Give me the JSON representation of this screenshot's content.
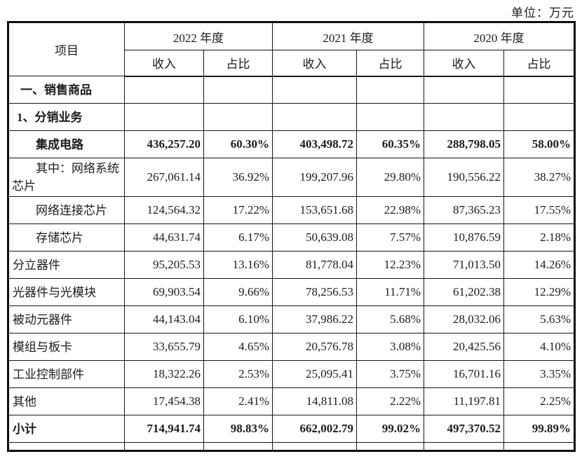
{
  "unit_label": "单位：万元",
  "table": {
    "item_header": "项目",
    "year_groups": [
      {
        "label": "2022 年度"
      },
      {
        "label": "2021 年度"
      },
      {
        "label": "2020 年度"
      }
    ],
    "sub_headers": {
      "revenue": "收入",
      "proportion": "占比"
    },
    "rows": [
      {
        "item": "一、销售商品",
        "bold": true,
        "indent": "section",
        "values": [
          "",
          "",
          "",
          "",
          "",
          ""
        ]
      },
      {
        "item": "1、分销业务",
        "bold": true,
        "indent": "sub",
        "values": [
          "",
          "",
          "",
          "",
          "",
          ""
        ]
      },
      {
        "item": "集成电路",
        "bold": true,
        "indent": "detail",
        "values": [
          "436,257.20",
          "60.30%",
          "403,498.72",
          "60.35%",
          "288,798.05",
          "58.00%"
        ]
      },
      {
        "item": "其中：网络系统芯片",
        "bold": false,
        "indent": "detail",
        "values": [
          "267,061.14",
          "36.92%",
          "199,207.96",
          "29.80%",
          "190,556.22",
          "38.27%"
        ]
      },
      {
        "item": "网络连接芯片",
        "bold": false,
        "indent": "detail",
        "values": [
          "124,564.32",
          "17.22%",
          "153,651.68",
          "22.98%",
          "87,365.23",
          "17.55%"
        ]
      },
      {
        "item": "存储芯片",
        "bold": false,
        "indent": "detail",
        "values": [
          "44,631.74",
          "6.17%",
          "50,639.08",
          "7.57%",
          "10,876.59",
          "2.18%"
        ]
      },
      {
        "item": "分立器件",
        "bold": false,
        "indent": "plain",
        "values": [
          "95,205.53",
          "13.16%",
          "81,778.04",
          "12.23%",
          "71,013.50",
          "14.26%"
        ]
      },
      {
        "item": "光器件与光模块",
        "bold": false,
        "indent": "plain",
        "values": [
          "69,903.54",
          "9.66%",
          "78,256.53",
          "11.71%",
          "61,202.38",
          "12.29%"
        ]
      },
      {
        "item": "被动元器件",
        "bold": false,
        "indent": "plain",
        "values": [
          "44,143.04",
          "6.10%",
          "37,986.22",
          "5.68%",
          "28,032.06",
          "5.63%"
        ]
      },
      {
        "item": "模组与板卡",
        "bold": false,
        "indent": "plain",
        "values": [
          "33,655.79",
          "4.65%",
          "20,576.78",
          "3.08%",
          "20,425.56",
          "4.10%"
        ]
      },
      {
        "item": "工业控制部件",
        "bold": false,
        "indent": "plain",
        "values": [
          "18,322.26",
          "2.53%",
          "25,095.41",
          "3.75%",
          "16,701.16",
          "3.35%"
        ]
      },
      {
        "item": "其他",
        "bold": false,
        "indent": "plain",
        "values": [
          "17,454.38",
          "2.41%",
          "14,811.08",
          "2.22%",
          "11,197.81",
          "2.25%"
        ]
      },
      {
        "item": "小计",
        "bold": true,
        "indent": "plain",
        "values": [
          "714,941.74",
          "98.83%",
          "662,002.79",
          "99.02%",
          "497,370.52",
          "99.89%"
        ]
      }
    ]
  },
  "colors": {
    "text": "#1c1c1c",
    "border": "#161616",
    "background": "#ffffff"
  }
}
